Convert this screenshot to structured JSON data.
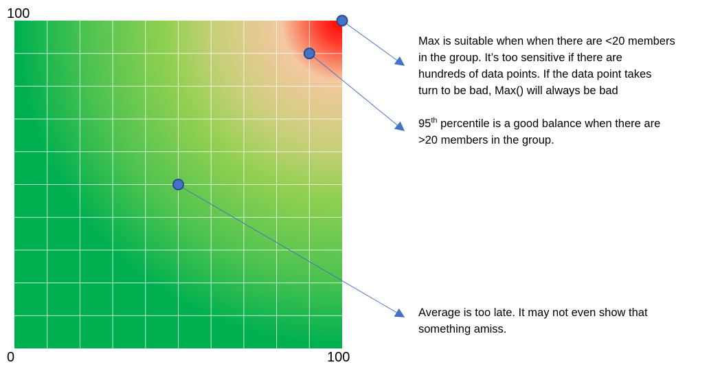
{
  "axis": {
    "y_top": "100",
    "origin": "0",
    "x_right": "100"
  },
  "colors": {
    "good": "#00b050",
    "mid": "#92d050",
    "warn": "#f4c7a0",
    "bad": "#ff0000",
    "marker": "#4472c4",
    "marker_stroke": "#2f4a8a",
    "arrow": "#4472c4"
  },
  "markers": [
    {
      "name": "max",
      "x": 100,
      "y": 100
    },
    {
      "name": "percentile-95",
      "x": 90,
      "y": 90
    },
    {
      "name": "average",
      "x": 50,
      "y": 50
    }
  ],
  "notes": {
    "max_line1": "Max is suitable when when there are <20 members",
    "max_line2": "in the group. It’s too sensitive if there are",
    "max_line3": "hundreds of data points. If the data point takes",
    "max_line4": "turn to be bad, Max() will always be bad",
    "p95_number": "95",
    "p95_sup": "th",
    "p95_line1_rest": " percentile is a good balance when there are",
    "p95_line2": ">20 members in the group.",
    "avg_line1": "Average is too late. It may not even show that",
    "avg_line2": "something amiss."
  }
}
